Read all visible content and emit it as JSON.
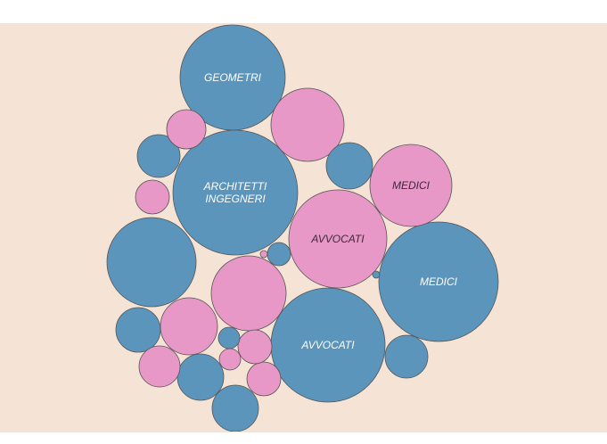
{
  "colors": {
    "background": "#f5e4d6",
    "frame_border": "#ece3da",
    "blue": "#5b95bb",
    "pink": "#e898c6",
    "stroke": "#555555",
    "label_on_blue": "#ffffff",
    "label_on_pink": "#3a2a35"
  },
  "chart_data": {
    "type": "bubble",
    "title": "",
    "groups": [
      {
        "key": "blue",
        "color": "#5b95bb"
      },
      {
        "key": "pink",
        "color": "#e898c6"
      }
    ],
    "bubbles": [
      {
        "group": "blue",
        "label": "GEOMETRI",
        "radius": 59
      },
      {
        "group": "blue",
        "label": "ARCHITETTI INGEGNERI",
        "radius": 70
      },
      {
        "group": "blue",
        "label": "MEDICI",
        "radius": 67
      },
      {
        "group": "blue",
        "label": "AVVOCATI",
        "radius": 64
      },
      {
        "group": "pink",
        "label": "AVVOCATI",
        "radius": 55
      },
      {
        "group": "pink",
        "label": "MEDICI",
        "radius": 46
      },
      {
        "group": "pink",
        "label": "",
        "radius": 41
      },
      {
        "group": "pink",
        "label": "",
        "radius": 42
      },
      {
        "group": "blue",
        "label": "",
        "radius": 50
      },
      {
        "group": "blue",
        "label": "",
        "radius": 26
      },
      {
        "group": "blue",
        "label": "",
        "radius": 24
      },
      {
        "group": "blue",
        "label": "",
        "radius": 25
      },
      {
        "group": "blue",
        "label": "",
        "radius": 26
      },
      {
        "group": "blue",
        "label": "",
        "radius": 24
      },
      {
        "group": "blue",
        "label": "",
        "radius": 26
      },
      {
        "group": "pink",
        "label": "",
        "radius": 32
      },
      {
        "group": "pink",
        "label": "",
        "radius": 22
      },
      {
        "group": "pink",
        "label": "",
        "radius": 19
      },
      {
        "group": "pink",
        "label": "",
        "radius": 23
      },
      {
        "group": "pink",
        "label": "",
        "radius": 19
      },
      {
        "group": "pink",
        "label": "",
        "radius": 19
      },
      {
        "group": "pink",
        "label": "",
        "radius": 12
      },
      {
        "group": "blue",
        "label": "",
        "radius": 13
      },
      {
        "group": "blue",
        "label": "",
        "radius": 12
      },
      {
        "group": "pink",
        "label": "",
        "radius": 4
      },
      {
        "group": "blue",
        "label": "",
        "radius": 4
      }
    ]
  }
}
